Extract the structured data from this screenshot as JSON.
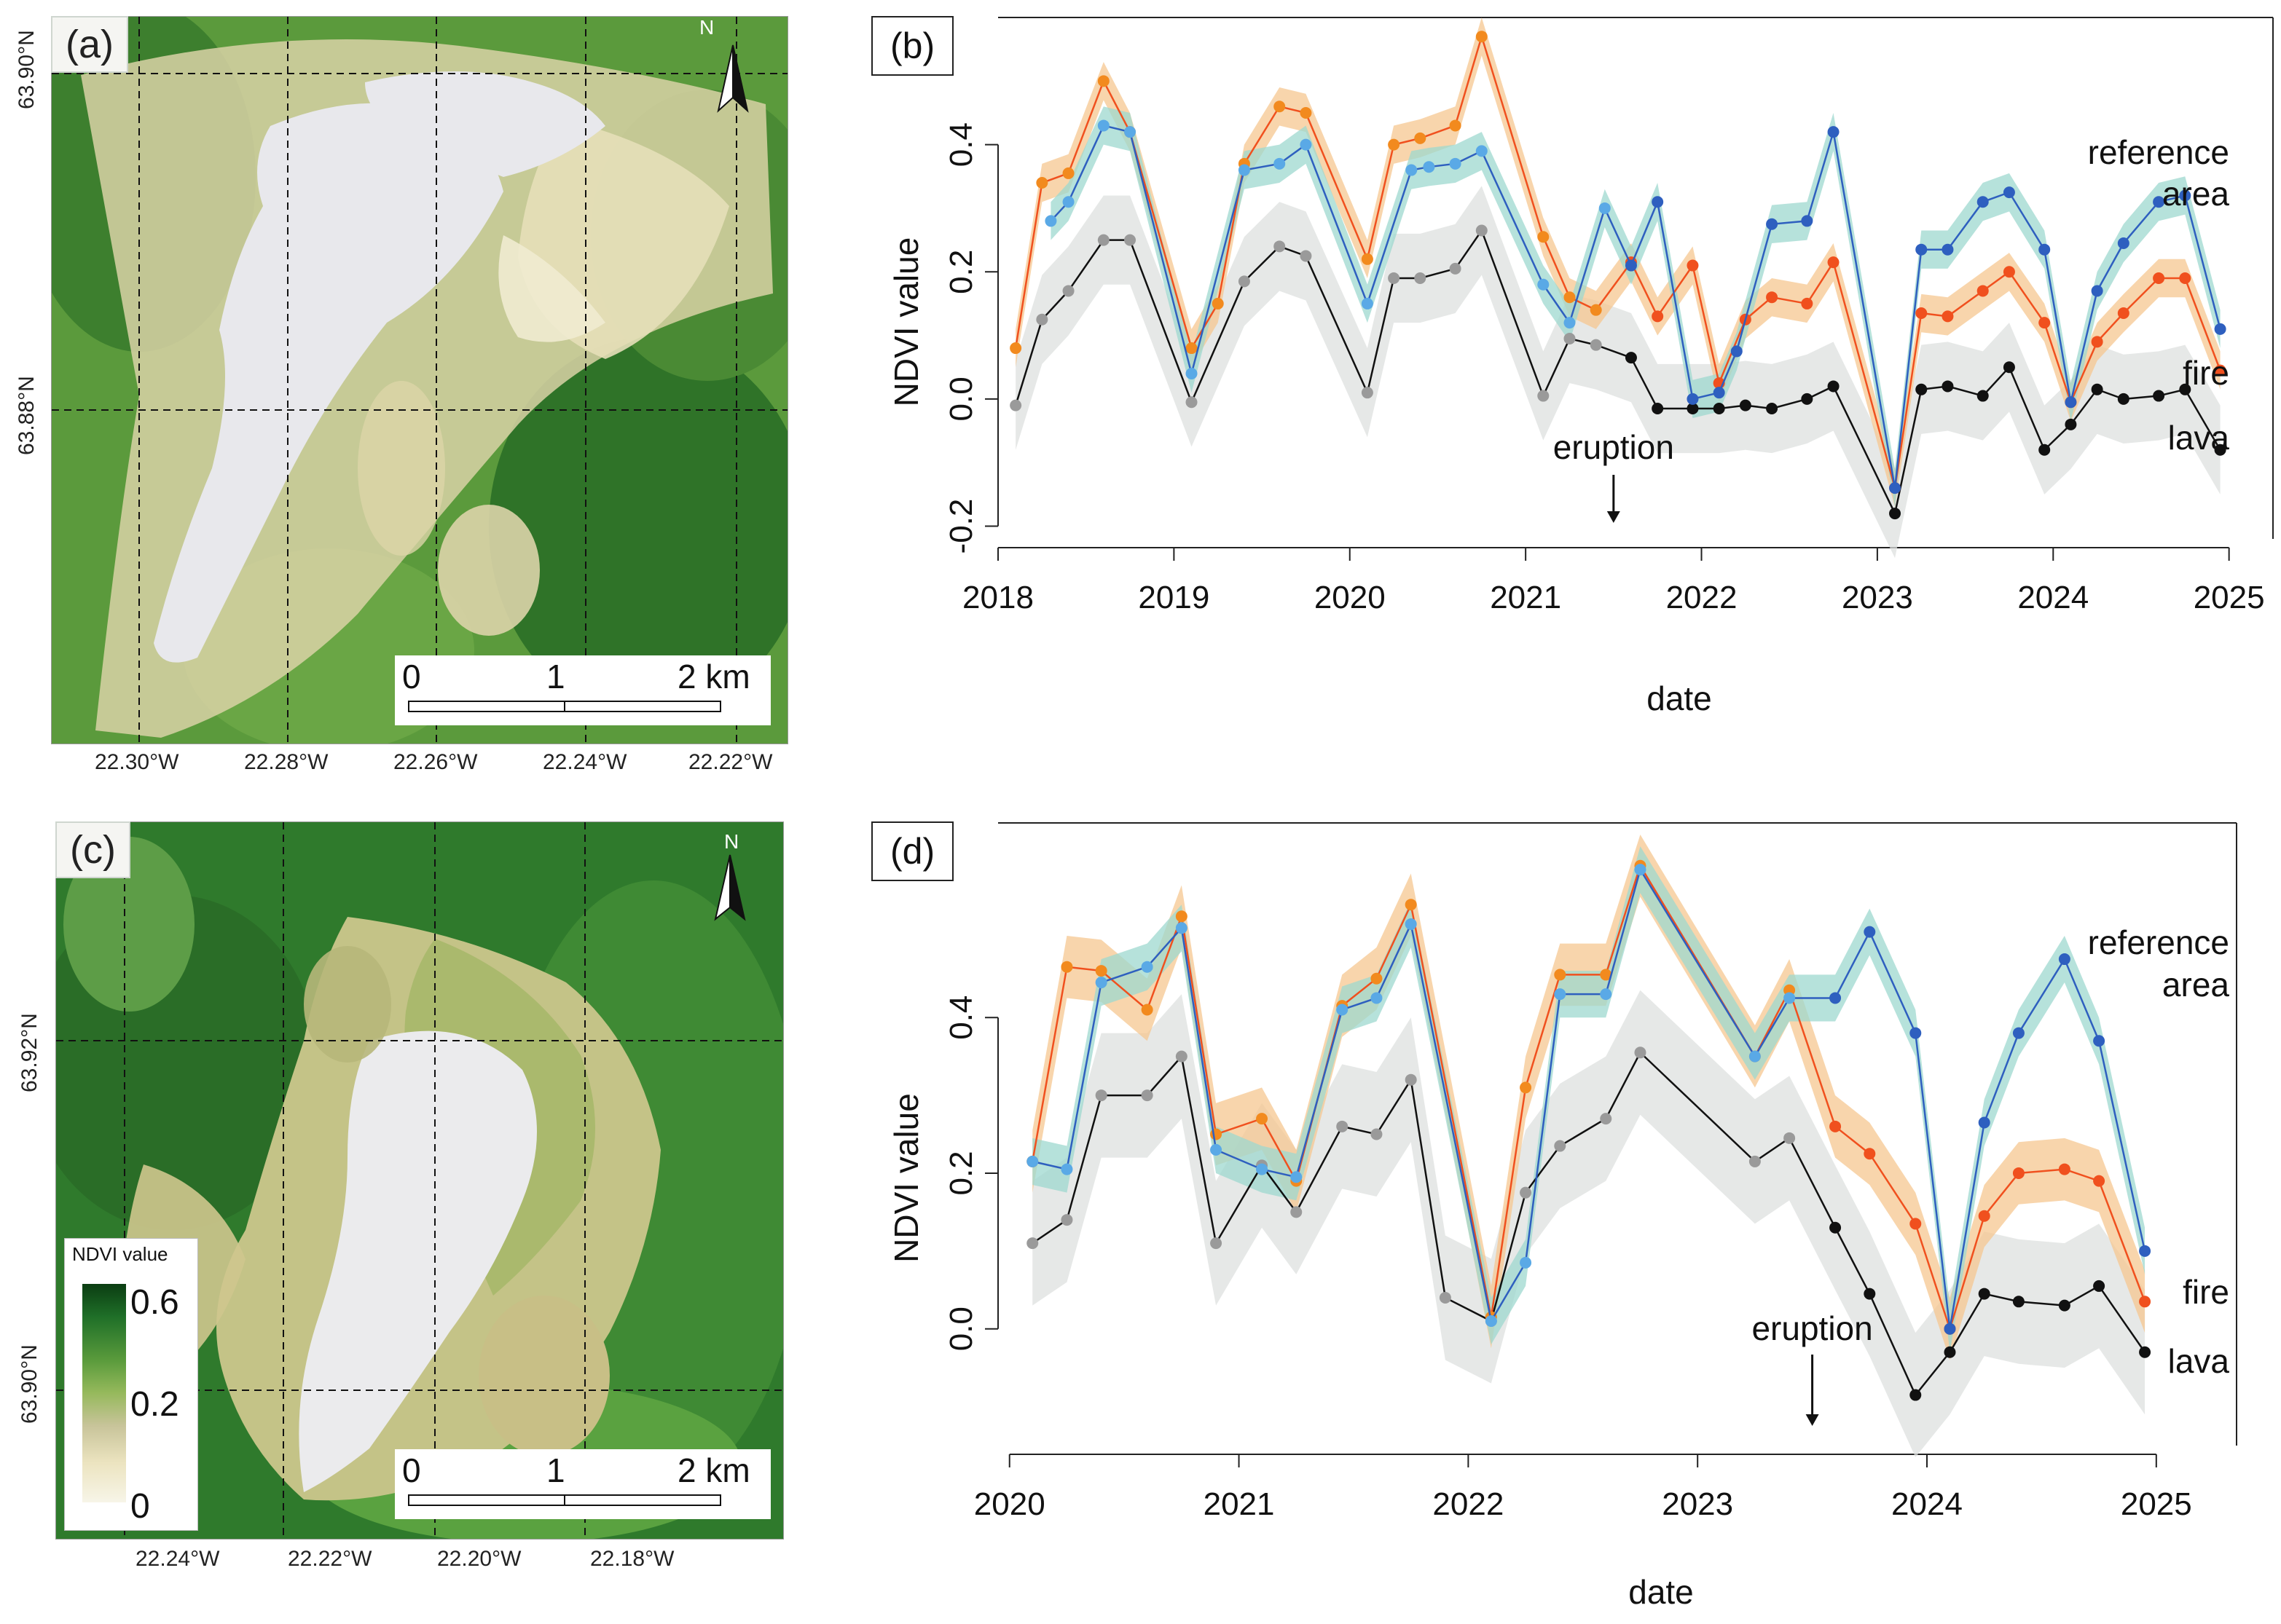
{
  "panels": {
    "a": "(a)",
    "b": "(b)",
    "c": "(c)",
    "d": "(d)"
  },
  "map_a": {
    "lat_labels": [
      "63.90°N",
      "63.88°N"
    ],
    "lon_labels": [
      "22.30°W",
      "22.28°W",
      "22.26°W",
      "22.24°W",
      "22.22°W"
    ],
    "north": "N",
    "scale": [
      "0",
      "1",
      "2 km"
    ]
  },
  "map_c": {
    "lat_labels": [
      "63.92°N",
      "63.90°N"
    ],
    "lon_labels": [
      "22.24°W",
      "22.22°W",
      "22.20°W",
      "22.18°W"
    ],
    "north": "N",
    "scale": [
      "0",
      "1",
      "2 km"
    ],
    "legend": {
      "title": "NDVI value",
      "ticks": [
        "0.6",
        "0.2",
        "0"
      ]
    }
  },
  "colors": {
    "reference": "#2e5fbf",
    "reference_light": "#5aa9e6",
    "reference_band": "#9ed8cf",
    "fire": "#f0501e",
    "fire_early": "#f28a1e",
    "fire_band": "#f5c790",
    "lava": "#111111",
    "lava_light": "#9a9a9a",
    "lava_band": "#dde0df"
  },
  "chart_data": [
    {
      "id": "b",
      "type": "line",
      "xlabel": "date",
      "ylabel": "NDVI value",
      "xlim": [
        2018,
        2025.25
      ],
      "ylim": [
        -0.22,
        0.6
      ],
      "xticks": [
        "2018",
        "2019",
        "2020",
        "2021",
        "2022",
        "2023",
        "2024",
        "2025"
      ],
      "yticks": [
        "-0.2",
        "0.0",
        "0.2",
        "0.4"
      ],
      "ytick_values": [
        -0.2,
        0.0,
        0.2,
        0.4
      ],
      "eruption": {
        "label": "eruption",
        "x": 2021.5
      },
      "series_labels": {
        "reference": [
          "reference",
          "area"
        ],
        "fire": "fire",
        "lava": "lava"
      },
      "series": [
        {
          "name": "reference area",
          "band": 0.03,
          "x": [
            2018.3,
            2018.4,
            2018.6,
            2018.75,
            2019.1,
            2019.4,
            2019.6,
            2019.75,
            2020.1,
            2020.35,
            2020.45,
            2020.6,
            2020.75,
            2021.1,
            2021.25,
            2021.45,
            2021.6,
            2021.75,
            2021.95,
            2022.1,
            2022.2,
            2022.4,
            2022.6,
            2022.75,
            2023.1,
            2023.25,
            2023.4,
            2023.6,
            2023.75,
            2023.95,
            2024.1,
            2024.25,
            2024.4,
            2024.6,
            2024.75,
            2024.95
          ],
          "values": [
            0.28,
            0.31,
            0.43,
            0.42,
            0.04,
            0.36,
            0.37,
            0.4,
            0.15,
            0.36,
            0.365,
            0.37,
            0.39,
            0.18,
            0.12,
            0.3,
            0.21,
            0.31,
            0.0,
            0.01,
            0.075,
            0.275,
            0.28,
            0.42,
            -0.14,
            0.235,
            0.235,
            0.31,
            0.325,
            0.235,
            -0.005,
            0.17,
            0.245,
            0.31,
            0.32,
            0.11
          ],
          "post_eruption_from": 2021.5
        },
        {
          "name": "fire",
          "band": 0.03,
          "x": [
            2018.1,
            2018.25,
            2018.4,
            2018.6,
            2018.75,
            2019.1,
            2019.25,
            2019.4,
            2019.6,
            2019.75,
            2020.1,
            2020.25,
            2020.4,
            2020.6,
            2020.75,
            2021.1,
            2021.25,
            2021.4,
            2021.6,
            2021.75,
            2021.95,
            2022.1,
            2022.25,
            2022.4,
            2022.6,
            2022.75,
            2023.1,
            2023.25,
            2023.4,
            2023.6,
            2023.75,
            2023.95,
            2024.1,
            2024.25,
            2024.4,
            2024.6,
            2024.75,
            2024.95
          ],
          "values": [
            0.08,
            0.34,
            0.355,
            0.5,
            0.42,
            0.08,
            0.15,
            0.37,
            0.46,
            0.45,
            0.22,
            0.4,
            0.41,
            0.43,
            0.57,
            0.255,
            0.16,
            0.14,
            0.215,
            0.13,
            0.21,
            0.025,
            0.125,
            0.16,
            0.15,
            0.215,
            -0.14,
            0.135,
            0.13,
            0.17,
            0.2,
            0.12,
            -0.005,
            0.09,
            0.135,
            0.19,
            0.19,
            0.045
          ],
          "post_eruption_from": 2021.5
        },
        {
          "name": "lava",
          "band": 0.07,
          "x": [
            2018.1,
            2018.25,
            2018.4,
            2018.6,
            2018.75,
            2019.1,
            2019.4,
            2019.6,
            2019.75,
            2020.1,
            2020.25,
            2020.4,
            2020.6,
            2020.75,
            2021.1,
            2021.25,
            2021.4,
            2021.6,
            2021.75,
            2021.95,
            2022.1,
            2022.25,
            2022.4,
            2022.6,
            2022.75,
            2023.1,
            2023.25,
            2023.4,
            2023.6,
            2023.75,
            2023.95,
            2024.1,
            2024.25,
            2024.4,
            2024.6,
            2024.75,
            2024.95
          ],
          "values": [
            -0.01,
            0.125,
            0.17,
            0.25,
            0.25,
            -0.005,
            0.185,
            0.24,
            0.225,
            0.01,
            0.19,
            0.19,
            0.205,
            0.265,
            0.005,
            0.095,
            0.085,
            0.065,
            -0.015,
            -0.015,
            -0.015,
            -0.01,
            -0.015,
            0.0,
            0.02,
            -0.18,
            0.015,
            0.02,
            0.005,
            0.05,
            -0.08,
            -0.04,
            0.015,
            0.0,
            0.005,
            0.015,
            -0.08
          ],
          "post_eruption_from": 2021.5
        }
      ]
    },
    {
      "id": "d",
      "type": "line",
      "xlabel": "date",
      "ylabel": "NDVI value",
      "xlim": [
        2019.95,
        2025.35
      ],
      "ylim": [
        -0.15,
        0.65
      ],
      "xticks": [
        "2020",
        "2021",
        "2022",
        "2023",
        "2024",
        "2025"
      ],
      "yticks": [
        "0.0",
        "0.2",
        "0.4"
      ],
      "ytick_values": [
        0.0,
        0.2,
        0.4
      ],
      "eruption": {
        "label": "eruption",
        "x": 2023.5
      },
      "series_labels": {
        "reference": [
          "reference",
          "area"
        ],
        "fire": "fire",
        "lava": "lava"
      },
      "series": [
        {
          "name": "reference area",
          "band": 0.03,
          "x": [
            2020.1,
            2020.25,
            2020.4,
            2020.6,
            2020.75,
            2020.9,
            2021.1,
            2021.25,
            2021.45,
            2021.6,
            2021.75,
            2022.1,
            2022.25,
            2022.4,
            2022.6,
            2022.75,
            2023.25,
            2023.4,
            2023.6,
            2023.75,
            2023.95,
            2024.1,
            2024.25,
            2024.4,
            2024.6,
            2024.75,
            2024.95
          ],
          "values": [
            0.215,
            0.205,
            0.445,
            0.465,
            0.515,
            0.23,
            0.205,
            0.195,
            0.41,
            0.425,
            0.52,
            0.01,
            0.085,
            0.43,
            0.43,
            0.59,
            0.35,
            0.425,
            0.425,
            0.51,
            0.38,
            0.0,
            0.265,
            0.38,
            0.475,
            0.37,
            0.1
          ],
          "post_eruption_from": 2023.5
        },
        {
          "name": "fire",
          "band": 0.04,
          "x": [
            2020.1,
            2020.25,
            2020.4,
            2020.6,
            2020.75,
            2020.9,
            2021.1,
            2021.25,
            2021.45,
            2021.6,
            2021.75,
            2022.1,
            2022.25,
            2022.4,
            2022.6,
            2022.75,
            2023.25,
            2023.4,
            2023.6,
            2023.75,
            2023.95,
            2024.1,
            2024.25,
            2024.4,
            2024.6,
            2024.75,
            2024.95
          ],
          "values": [
            0.215,
            0.465,
            0.46,
            0.41,
            0.53,
            0.25,
            0.27,
            0.19,
            0.415,
            0.45,
            0.545,
            0.015,
            0.31,
            0.455,
            0.455,
            0.595,
            0.35,
            0.435,
            0.26,
            0.225,
            0.135,
            0.0,
            0.145,
            0.2,
            0.205,
            0.19,
            0.035
          ],
          "post_eruption_from": 2023.5
        },
        {
          "name": "lava",
          "band": 0.08,
          "x": [
            2020.1,
            2020.25,
            2020.4,
            2020.6,
            2020.75,
            2020.9,
            2021.1,
            2021.25,
            2021.45,
            2021.6,
            2021.75,
            2021.9,
            2022.1,
            2022.25,
            2022.4,
            2022.6,
            2022.75,
            2023.25,
            2023.4,
            2023.6,
            2023.75,
            2023.95,
            2024.1,
            2024.25,
            2024.4,
            2024.6,
            2024.75,
            2024.95
          ],
          "values": [
            0.11,
            0.14,
            0.3,
            0.3,
            0.35,
            0.11,
            0.21,
            0.15,
            0.26,
            0.25,
            0.32,
            0.04,
            0.01,
            0.175,
            0.235,
            0.27,
            0.355,
            0.215,
            0.245,
            0.13,
            0.045,
            -0.085,
            -0.03,
            0.045,
            0.035,
            0.03,
            0.055,
            -0.03
          ],
          "post_eruption_from": 2023.5
        }
      ]
    }
  ]
}
